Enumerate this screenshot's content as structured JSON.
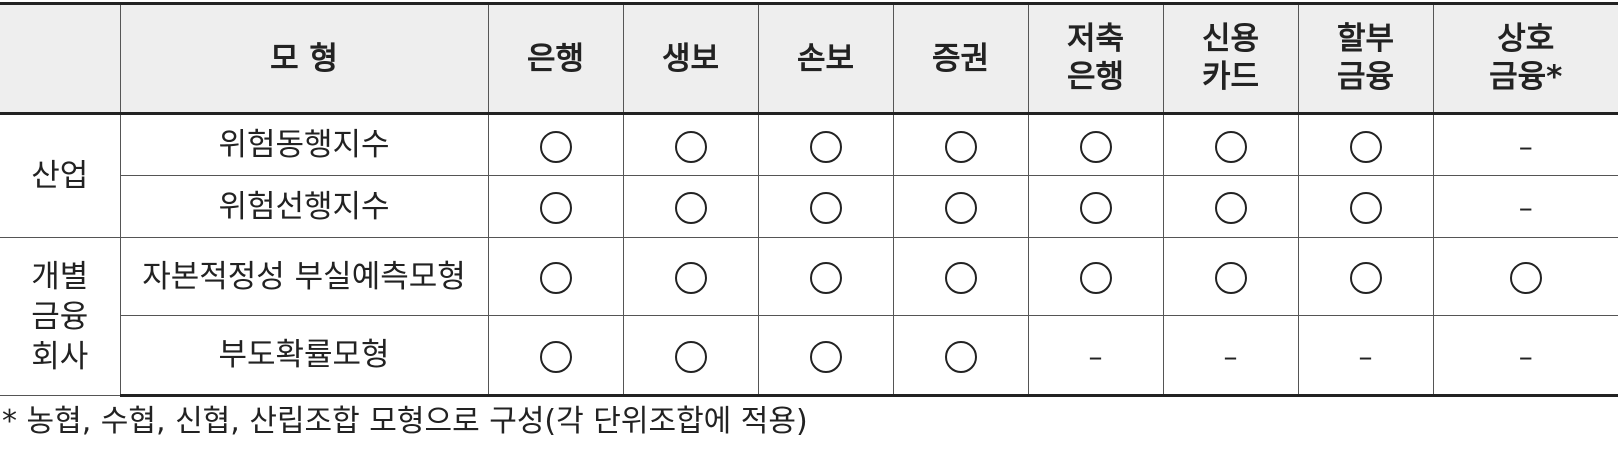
{
  "header": {
    "model_label": "모 형",
    "institutions": [
      "은행",
      "생보",
      "손보",
      "증권",
      "저축\n은행",
      "신용\n카드",
      "할부\n금융",
      "상호\n금융*"
    ]
  },
  "groups": [
    {
      "label": "산업"
    },
    {
      "label": "개별\n금융\n회사"
    }
  ],
  "rows": [
    {
      "model": "위험동행지수",
      "marks": [
        "circle",
        "circle",
        "circle",
        "circle",
        "circle",
        "circle",
        "circle",
        "dash"
      ]
    },
    {
      "model": "위험선행지수",
      "marks": [
        "circle",
        "circle",
        "circle",
        "circle",
        "circle",
        "circle",
        "circle",
        "dash"
      ]
    },
    {
      "model": "자본적정성 부실예측모형",
      "marks": [
        "circle",
        "circle",
        "circle",
        "circle",
        "circle",
        "circle",
        "circle",
        "circle"
      ]
    },
    {
      "model": "부도확률모형",
      "marks": [
        "circle",
        "circle",
        "circle",
        "circle",
        "dash",
        "dash",
        "dash",
        "dash"
      ]
    }
  ],
  "dash_symbol": "–",
  "footnote": "* 농협, 수협, 신협, 산립조합 모형으로 구성(각 단위조합에 적용)"
}
